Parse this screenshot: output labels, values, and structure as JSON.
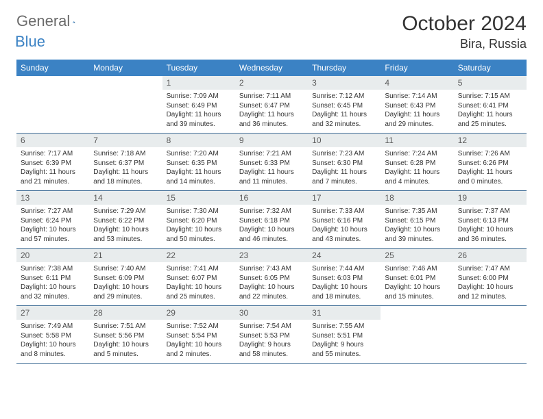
{
  "logo": {
    "gray": "General",
    "blue": "Blue"
  },
  "title": "October 2024",
  "location": "Bira, Russia",
  "colors": {
    "header_bg": "#3b82c4",
    "header_text": "#ffffff",
    "daynum_bg": "#e8eced",
    "daynum_text": "#5a5a5a",
    "body_text": "#333333",
    "border": "#3b6a94",
    "logo_gray": "#6b6b6b",
    "logo_blue": "#3b82c4"
  },
  "day_names": [
    "Sunday",
    "Monday",
    "Tuesday",
    "Wednesday",
    "Thursday",
    "Friday",
    "Saturday"
  ],
  "weeks": [
    [
      null,
      null,
      {
        "n": "1",
        "sr": "Sunrise: 7:09 AM",
        "ss": "Sunset: 6:49 PM",
        "d1": "Daylight: 11 hours",
        "d2": "and 39 minutes."
      },
      {
        "n": "2",
        "sr": "Sunrise: 7:11 AM",
        "ss": "Sunset: 6:47 PM",
        "d1": "Daylight: 11 hours",
        "d2": "and 36 minutes."
      },
      {
        "n": "3",
        "sr": "Sunrise: 7:12 AM",
        "ss": "Sunset: 6:45 PM",
        "d1": "Daylight: 11 hours",
        "d2": "and 32 minutes."
      },
      {
        "n": "4",
        "sr": "Sunrise: 7:14 AM",
        "ss": "Sunset: 6:43 PM",
        "d1": "Daylight: 11 hours",
        "d2": "and 29 minutes."
      },
      {
        "n": "5",
        "sr": "Sunrise: 7:15 AM",
        "ss": "Sunset: 6:41 PM",
        "d1": "Daylight: 11 hours",
        "d2": "and 25 minutes."
      }
    ],
    [
      {
        "n": "6",
        "sr": "Sunrise: 7:17 AM",
        "ss": "Sunset: 6:39 PM",
        "d1": "Daylight: 11 hours",
        "d2": "and 21 minutes."
      },
      {
        "n": "7",
        "sr": "Sunrise: 7:18 AM",
        "ss": "Sunset: 6:37 PM",
        "d1": "Daylight: 11 hours",
        "d2": "and 18 minutes."
      },
      {
        "n": "8",
        "sr": "Sunrise: 7:20 AM",
        "ss": "Sunset: 6:35 PM",
        "d1": "Daylight: 11 hours",
        "d2": "and 14 minutes."
      },
      {
        "n": "9",
        "sr": "Sunrise: 7:21 AM",
        "ss": "Sunset: 6:33 PM",
        "d1": "Daylight: 11 hours",
        "d2": "and 11 minutes."
      },
      {
        "n": "10",
        "sr": "Sunrise: 7:23 AM",
        "ss": "Sunset: 6:30 PM",
        "d1": "Daylight: 11 hours",
        "d2": "and 7 minutes."
      },
      {
        "n": "11",
        "sr": "Sunrise: 7:24 AM",
        "ss": "Sunset: 6:28 PM",
        "d1": "Daylight: 11 hours",
        "d2": "and 4 minutes."
      },
      {
        "n": "12",
        "sr": "Sunrise: 7:26 AM",
        "ss": "Sunset: 6:26 PM",
        "d1": "Daylight: 11 hours",
        "d2": "and 0 minutes."
      }
    ],
    [
      {
        "n": "13",
        "sr": "Sunrise: 7:27 AM",
        "ss": "Sunset: 6:24 PM",
        "d1": "Daylight: 10 hours",
        "d2": "and 57 minutes."
      },
      {
        "n": "14",
        "sr": "Sunrise: 7:29 AM",
        "ss": "Sunset: 6:22 PM",
        "d1": "Daylight: 10 hours",
        "d2": "and 53 minutes."
      },
      {
        "n": "15",
        "sr": "Sunrise: 7:30 AM",
        "ss": "Sunset: 6:20 PM",
        "d1": "Daylight: 10 hours",
        "d2": "and 50 minutes."
      },
      {
        "n": "16",
        "sr": "Sunrise: 7:32 AM",
        "ss": "Sunset: 6:18 PM",
        "d1": "Daylight: 10 hours",
        "d2": "and 46 minutes."
      },
      {
        "n": "17",
        "sr": "Sunrise: 7:33 AM",
        "ss": "Sunset: 6:16 PM",
        "d1": "Daylight: 10 hours",
        "d2": "and 43 minutes."
      },
      {
        "n": "18",
        "sr": "Sunrise: 7:35 AM",
        "ss": "Sunset: 6:15 PM",
        "d1": "Daylight: 10 hours",
        "d2": "and 39 minutes."
      },
      {
        "n": "19",
        "sr": "Sunrise: 7:37 AM",
        "ss": "Sunset: 6:13 PM",
        "d1": "Daylight: 10 hours",
        "d2": "and 36 minutes."
      }
    ],
    [
      {
        "n": "20",
        "sr": "Sunrise: 7:38 AM",
        "ss": "Sunset: 6:11 PM",
        "d1": "Daylight: 10 hours",
        "d2": "and 32 minutes."
      },
      {
        "n": "21",
        "sr": "Sunrise: 7:40 AM",
        "ss": "Sunset: 6:09 PM",
        "d1": "Daylight: 10 hours",
        "d2": "and 29 minutes."
      },
      {
        "n": "22",
        "sr": "Sunrise: 7:41 AM",
        "ss": "Sunset: 6:07 PM",
        "d1": "Daylight: 10 hours",
        "d2": "and 25 minutes."
      },
      {
        "n": "23",
        "sr": "Sunrise: 7:43 AM",
        "ss": "Sunset: 6:05 PM",
        "d1": "Daylight: 10 hours",
        "d2": "and 22 minutes."
      },
      {
        "n": "24",
        "sr": "Sunrise: 7:44 AM",
        "ss": "Sunset: 6:03 PM",
        "d1": "Daylight: 10 hours",
        "d2": "and 18 minutes."
      },
      {
        "n": "25",
        "sr": "Sunrise: 7:46 AM",
        "ss": "Sunset: 6:01 PM",
        "d1": "Daylight: 10 hours",
        "d2": "and 15 minutes."
      },
      {
        "n": "26",
        "sr": "Sunrise: 7:47 AM",
        "ss": "Sunset: 6:00 PM",
        "d1": "Daylight: 10 hours",
        "d2": "and 12 minutes."
      }
    ],
    [
      {
        "n": "27",
        "sr": "Sunrise: 7:49 AM",
        "ss": "Sunset: 5:58 PM",
        "d1": "Daylight: 10 hours",
        "d2": "and 8 minutes."
      },
      {
        "n": "28",
        "sr": "Sunrise: 7:51 AM",
        "ss": "Sunset: 5:56 PM",
        "d1": "Daylight: 10 hours",
        "d2": "and 5 minutes."
      },
      {
        "n": "29",
        "sr": "Sunrise: 7:52 AM",
        "ss": "Sunset: 5:54 PM",
        "d1": "Daylight: 10 hours",
        "d2": "and 2 minutes."
      },
      {
        "n": "30",
        "sr": "Sunrise: 7:54 AM",
        "ss": "Sunset: 5:53 PM",
        "d1": "Daylight: 9 hours",
        "d2": "and 58 minutes."
      },
      {
        "n": "31",
        "sr": "Sunrise: 7:55 AM",
        "ss": "Sunset: 5:51 PM",
        "d1": "Daylight: 9 hours",
        "d2": "and 55 minutes."
      },
      null,
      null
    ]
  ]
}
